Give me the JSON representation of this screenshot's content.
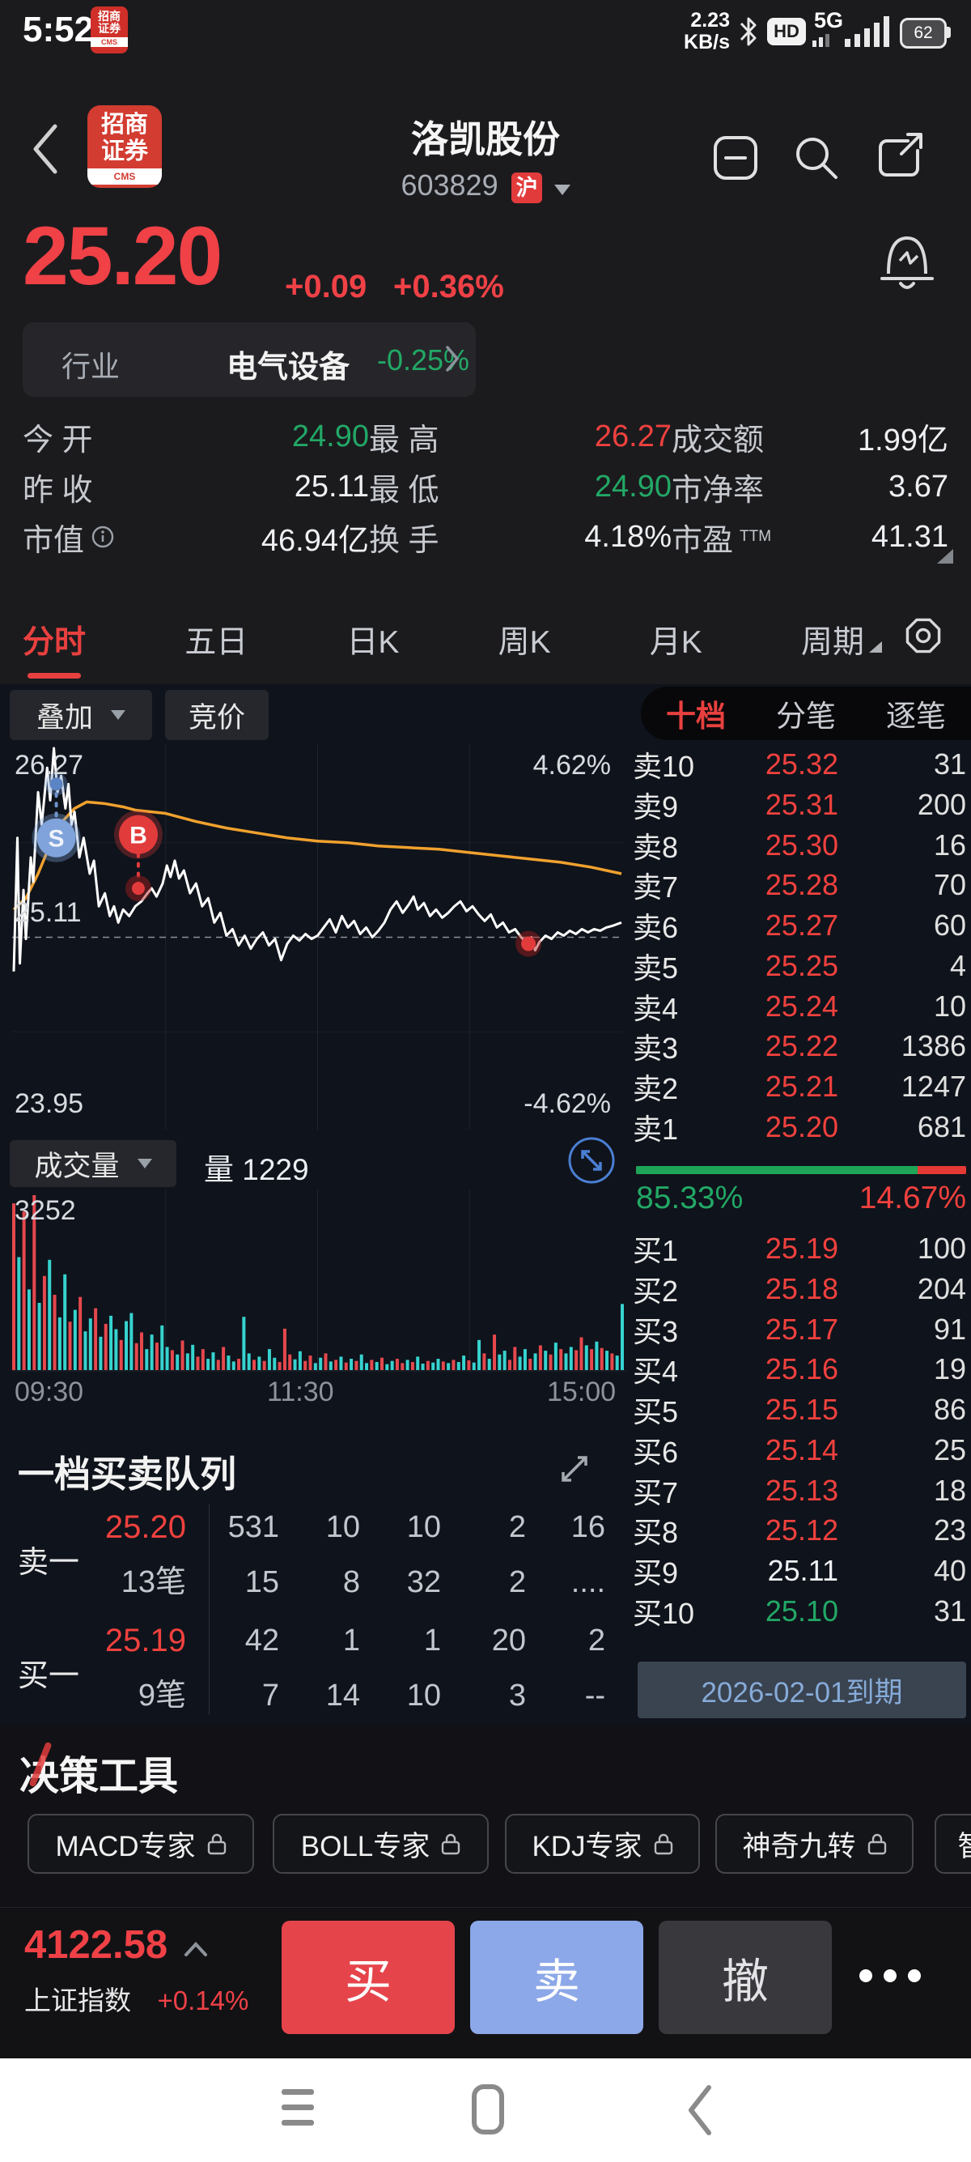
{
  "status_bar": {
    "time": "5:52",
    "net_speed_top": "2.23",
    "net_speed_bottom": "KB/s",
    "hd": "HD",
    "network": "5G",
    "battery": "62"
  },
  "header": {
    "title": "洛凯股份",
    "code": "603829",
    "market_badge": "沪",
    "logo_line1": "招商",
    "logo_line2": "证券",
    "logo_sub": "CMS"
  },
  "quote": {
    "price": "25.20",
    "change": "+0.09",
    "change_pct": "+0.36%"
  },
  "industry": {
    "label": "行业",
    "name": "电气设备",
    "change_pct": "-0.25%"
  },
  "stats": {
    "rows": [
      [
        {
          "label": "今 开",
          "value": "24.90",
          "color": "g"
        },
        {
          "label": "最 高",
          "value": "26.27",
          "color": "r"
        },
        {
          "label": "成交额",
          "value": "1.99亿",
          "color": "w"
        }
      ],
      [
        {
          "label": "昨 收",
          "value": "25.11",
          "color": "w"
        },
        {
          "label": "最 低",
          "value": "24.90",
          "color": "g"
        },
        {
          "label": "市净率",
          "value": "3.67",
          "color": "w"
        }
      ],
      [
        {
          "label": "市值",
          "info": true,
          "value": "46.94亿",
          "color": "w"
        },
        {
          "label": "换 手",
          "value": "4.18%",
          "color": "w"
        },
        {
          "label": "市盈",
          "sup": "TTM",
          "value": "41.31",
          "color": "w"
        }
      ]
    ]
  },
  "tabs": {
    "items": [
      "分时",
      "五日",
      "日K",
      "周K",
      "月K",
      "周期"
    ],
    "active": 0
  },
  "chart_toolbar": {
    "overlay": "叠加",
    "auction": "竞价",
    "depth_tabs": [
      "十档",
      "分笔",
      "逐笔"
    ],
    "depth_active": 0
  },
  "volume_toolbar": {
    "label": "成交量",
    "vol_label": "量 1229"
  },
  "order_book": {
    "sell_rows": [
      {
        "l": "卖10",
        "p": "25.32",
        "v": "31",
        "c": "r"
      },
      {
        "l": "卖9",
        "p": "25.31",
        "v": "200",
        "c": "r"
      },
      {
        "l": "卖8",
        "p": "25.30",
        "v": "16",
        "c": "r"
      },
      {
        "l": "卖7",
        "p": "25.28",
        "v": "70",
        "c": "r"
      },
      {
        "l": "卖6",
        "p": "25.27",
        "v": "60",
        "c": "r"
      },
      {
        "l": "卖5",
        "p": "25.25",
        "v": "4",
        "c": "r"
      },
      {
        "l": "卖4",
        "p": "25.24",
        "v": "10",
        "c": "r"
      },
      {
        "l": "卖3",
        "p": "25.22",
        "v": "1386",
        "c": "r"
      },
      {
        "l": "卖2",
        "p": "25.21",
        "v": "1247",
        "c": "r"
      },
      {
        "l": "卖1",
        "p": "25.20",
        "v": "681",
        "c": "r"
      }
    ],
    "buy_rows": [
      {
        "l": "买1",
        "p": "25.19",
        "v": "100",
        "c": "r"
      },
      {
        "l": "买2",
        "p": "25.18",
        "v": "204",
        "c": "r"
      },
      {
        "l": "买3",
        "p": "25.17",
        "v": "91",
        "c": "r"
      },
      {
        "l": "买4",
        "p": "25.16",
        "v": "19",
        "c": "r"
      },
      {
        "l": "买5",
        "p": "25.15",
        "v": "86",
        "c": "r"
      },
      {
        "l": "买6",
        "p": "25.14",
        "v": "25",
        "c": "r"
      },
      {
        "l": "买7",
        "p": "25.13",
        "v": "18",
        "c": "r"
      },
      {
        "l": "买8",
        "p": "25.12",
        "v": "23",
        "c": "r"
      },
      {
        "l": "买9",
        "p": "25.11",
        "v": "40",
        "c": "w"
      },
      {
        "l": "买10",
        "p": "25.10",
        "v": "31",
        "c": "g"
      }
    ],
    "buy_pct": "85.33%",
    "sell_pct": "14.67%",
    "buy_ratio": 85.33,
    "expiry": "2026-02-01到期"
  },
  "queue": {
    "title": "一档买卖队列",
    "sell_label": "卖一",
    "buy_label": "买一",
    "sell_price": "25.20",
    "sell_count": "13笔",
    "sell_q1": [
      "531",
      "10",
      "10",
      "2",
      "16"
    ],
    "sell_q1_highlight": 0,
    "sell_q2": [
      "15",
      "8",
      "32",
      "2",
      "...."
    ],
    "buy_price": "25.19",
    "buy_count": "9笔",
    "buy_q1": [
      "42",
      "1",
      "1",
      "20",
      "2"
    ],
    "buy_q2": [
      "7",
      "14",
      "10",
      "3",
      "--"
    ]
  },
  "tools": {
    "title": "决策工具",
    "buttons": [
      "MACD专家",
      "BOLL专家",
      "KDJ专家",
      "神奇九转",
      "智"
    ]
  },
  "bottom_bar": {
    "index_value": "4122.58",
    "index_name": "上证指数",
    "index_change": "+0.14%",
    "buy": "买",
    "sell": "卖",
    "cancel": "撤"
  },
  "chart_data": {
    "type": "line",
    "title": "分时",
    "labels": {
      "high": "26.27",
      "mid": "25.11",
      "low": "23.95",
      "pct_high": "4.62%",
      "pct_low": "-4.62%",
      "vol_max": "3252",
      "x": [
        "09:30",
        "11:30",
        "15:00"
      ]
    },
    "y_range": [
      23.95,
      26.27
    ],
    "prev_close": 25.11,
    "price": [
      [
        0,
        24.9
      ],
      [
        0.006,
        25.72
      ],
      [
        0.01,
        24.95
      ],
      [
        0.016,
        25.4
      ],
      [
        0.02,
        25.1
      ],
      [
        0.028,
        25.6
      ],
      [
        0.032,
        25.45
      ],
      [
        0.04,
        26.0
      ],
      [
        0.046,
        25.8
      ],
      [
        0.055,
        26.15
      ],
      [
        0.06,
        25.95
      ],
      [
        0.066,
        26.27
      ],
      [
        0.072,
        26.0
      ],
      [
        0.078,
        26.1
      ],
      [
        0.085,
        25.9
      ],
      [
        0.09,
        26.05
      ],
      [
        0.095,
        25.8
      ],
      [
        0.1,
        25.88
      ],
      [
        0.108,
        25.6
      ],
      [
        0.115,
        25.72
      ],
      [
        0.125,
        25.5
      ],
      [
        0.132,
        25.58
      ],
      [
        0.14,
        25.3
      ],
      [
        0.15,
        25.38
      ],
      [
        0.158,
        25.24
      ],
      [
        0.165,
        25.3
      ],
      [
        0.172,
        25.2
      ],
      [
        0.18,
        25.28
      ],
      [
        0.19,
        25.24
      ],
      [
        0.2,
        25.3
      ],
      [
        0.21,
        25.33
      ],
      [
        0.22,
        25.38
      ],
      [
        0.227,
        25.41
      ],
      [
        0.235,
        25.36
      ],
      [
        0.245,
        25.44
      ],
      [
        0.252,
        25.55
      ],
      [
        0.258,
        25.48
      ],
      [
        0.265,
        25.58
      ],
      [
        0.272,
        25.47
      ],
      [
        0.28,
        25.52
      ],
      [
        0.29,
        25.38
      ],
      [
        0.3,
        25.44
      ],
      [
        0.31,
        25.3
      ],
      [
        0.32,
        25.35
      ],
      [
        0.33,
        25.2
      ],
      [
        0.34,
        25.26
      ],
      [
        0.35,
        25.12
      ],
      [
        0.36,
        25.16
      ],
      [
        0.37,
        25.06
      ],
      [
        0.38,
        25.12
      ],
      [
        0.39,
        25.04
      ],
      [
        0.4,
        25.1
      ],
      [
        0.41,
        25.14
      ],
      [
        0.42,
        25.06
      ],
      [
        0.43,
        25.1
      ],
      [
        0.44,
        24.97
      ],
      [
        0.45,
        25.07
      ],
      [
        0.46,
        25.12
      ],
      [
        0.47,
        25.09
      ],
      [
        0.48,
        25.13
      ],
      [
        0.49,
        25.1
      ],
      [
        0.5,
        25.12
      ],
      [
        0.51,
        25.17
      ],
      [
        0.52,
        25.22
      ],
      [
        0.53,
        25.14
      ],
      [
        0.54,
        25.24
      ],
      [
        0.55,
        25.17
      ],
      [
        0.56,
        25.21
      ],
      [
        0.57,
        25.13
      ],
      [
        0.58,
        25.17
      ],
      [
        0.59,
        25.11
      ],
      [
        0.6,
        25.15
      ],
      [
        0.61,
        25.2
      ],
      [
        0.62,
        25.28
      ],
      [
        0.63,
        25.33
      ],
      [
        0.64,
        25.26
      ],
      [
        0.65,
        25.31
      ],
      [
        0.658,
        25.36
      ],
      [
        0.665,
        25.28
      ],
      [
        0.675,
        25.32
      ],
      [
        0.685,
        25.24
      ],
      [
        0.695,
        25.28
      ],
      [
        0.705,
        25.23
      ],
      [
        0.715,
        25.26
      ],
      [
        0.725,
        25.3
      ],
      [
        0.735,
        25.33
      ],
      [
        0.745,
        25.27
      ],
      [
        0.755,
        25.3
      ],
      [
        0.765,
        25.25
      ],
      [
        0.775,
        25.21
      ],
      [
        0.785,
        25.25
      ],
      [
        0.795,
        25.17
      ],
      [
        0.805,
        25.2
      ],
      [
        0.815,
        25.14
      ],
      [
        0.825,
        25.16
      ],
      [
        0.835,
        25.11
      ],
      [
        0.845,
        25.07
      ],
      [
        0.852,
        25.11
      ],
      [
        0.858,
        25.03
      ],
      [
        0.865,
        25.08
      ],
      [
        0.875,
        25.12
      ],
      [
        0.885,
        25.1
      ],
      [
        0.895,
        25.14
      ],
      [
        0.905,
        25.12
      ],
      [
        0.915,
        25.15
      ],
      [
        0.925,
        25.13
      ],
      [
        0.935,
        25.16
      ],
      [
        0.945,
        25.14
      ],
      [
        0.955,
        25.16
      ],
      [
        0.965,
        25.15
      ],
      [
        0.975,
        25.17
      ],
      [
        0.985,
        25.18
      ],
      [
        1,
        25.2
      ]
    ],
    "avg": [
      [
        0,
        25.28
      ],
      [
        0.02,
        25.35
      ],
      [
        0.04,
        25.5
      ],
      [
        0.06,
        25.68
      ],
      [
        0.08,
        25.82
      ],
      [
        0.1,
        25.9
      ],
      [
        0.12,
        25.94
      ],
      [
        0.15,
        25.93
      ],
      [
        0.18,
        25.91
      ],
      [
        0.2,
        25.89
      ],
      [
        0.25,
        25.87
      ],
      [
        0.3,
        25.82
      ],
      [
        0.35,
        25.78
      ],
      [
        0.4,
        25.75
      ],
      [
        0.45,
        25.72
      ],
      [
        0.5,
        25.7
      ],
      [
        0.55,
        25.69
      ],
      [
        0.6,
        25.67
      ],
      [
        0.65,
        25.66
      ],
      [
        0.7,
        25.65
      ],
      [
        0.75,
        25.63
      ],
      [
        0.8,
        25.61
      ],
      [
        0.85,
        25.59
      ],
      [
        0.9,
        25.57
      ],
      [
        0.95,
        25.54
      ],
      [
        1,
        25.5
      ]
    ],
    "markers": {
      "s_dot": [
        0.07,
        26.05
      ],
      "s_badge": [
        0.07,
        25.72
      ],
      "b_badge": [
        0.205,
        25.74
      ],
      "b_dot": [
        0.205,
        25.41
      ],
      "sell_dot": [
        0.847,
        25.07
      ]
    },
    "volume_max": 3252,
    "volume": [
      [
        3100,
        "r"
      ],
      [
        2100,
        "c"
      ],
      [
        2950,
        "r"
      ],
      [
        1500,
        "c"
      ],
      [
        3252,
        "r"
      ],
      [
        1250,
        "c"
      ],
      [
        1750,
        "r"
      ],
      [
        2050,
        "c"
      ],
      [
        1400,
        "r"
      ],
      [
        980,
        "c"
      ],
      [
        1780,
        "c"
      ],
      [
        900,
        "r"
      ],
      [
        1120,
        "c"
      ],
      [
        1360,
        "r"
      ],
      [
        720,
        "c"
      ],
      [
        960,
        "c"
      ],
      [
        1150,
        "r"
      ],
      [
        620,
        "c"
      ],
      [
        860,
        "r"
      ],
      [
        1010,
        "c"
      ],
      [
        760,
        "c"
      ],
      [
        560,
        "r"
      ],
      [
        910,
        "c"
      ],
      [
        1060,
        "c"
      ],
      [
        500,
        "r"
      ],
      [
        700,
        "r"
      ],
      [
        390,
        "c"
      ],
      [
        660,
        "c"
      ],
      [
        510,
        "r"
      ],
      [
        830,
        "c"
      ],
      [
        430,
        "c"
      ],
      [
        370,
        "r"
      ],
      [
        290,
        "c"
      ],
      [
        550,
        "r"
      ],
      [
        310,
        "c"
      ],
      [
        470,
        "c"
      ],
      [
        250,
        "r"
      ],
      [
        390,
        "r"
      ],
      [
        210,
        "c"
      ],
      [
        330,
        "c"
      ],
      [
        190,
        "r"
      ],
      [
        430,
        "r"
      ],
      [
        270,
        "c"
      ],
      [
        160,
        "c"
      ],
      [
        210,
        "r"
      ],
      [
        990,
        "c"
      ],
      [
        310,
        "c"
      ],
      [
        190,
        "r"
      ],
      [
        250,
        "c"
      ],
      [
        170,
        "r"
      ],
      [
        390,
        "c"
      ],
      [
        230,
        "c"
      ],
      [
        150,
        "r"
      ],
      [
        770,
        "r"
      ],
      [
        290,
        "r"
      ],
      [
        200,
        "c"
      ],
      [
        350,
        "c"
      ],
      [
        170,
        "r"
      ],
      [
        270,
        "r"
      ],
      [
        130,
        "c"
      ],
      [
        230,
        "c"
      ],
      [
        310,
        "r"
      ],
      [
        160,
        "c"
      ],
      [
        190,
        "r"
      ],
      [
        250,
        "c"
      ],
      [
        140,
        "r"
      ],
      [
        210,
        "c"
      ],
      [
        170,
        "r"
      ],
      [
        290,
        "c"
      ],
      [
        130,
        "c"
      ],
      [
        190,
        "r"
      ],
      [
        150,
        "c"
      ],
      [
        230,
        "r"
      ],
      [
        110,
        "c"
      ],
      [
        170,
        "c"
      ],
      [
        210,
        "r"
      ],
      [
        130,
        "r"
      ],
      [
        190,
        "c"
      ],
      [
        150,
        "r"
      ],
      [
        250,
        "c"
      ],
      [
        120,
        "c"
      ],
      [
        170,
        "r"
      ],
      [
        140,
        "c"
      ],
      [
        210,
        "c"
      ],
      [
        160,
        "r"
      ],
      [
        130,
        "c"
      ],
      [
        190,
        "r"
      ],
      [
        150,
        "c"
      ],
      [
        270,
        "c"
      ],
      [
        180,
        "r"
      ],
      [
        140,
        "c"
      ],
      [
        560,
        "c"
      ],
      [
        310,
        "r"
      ],
      [
        210,
        "c"
      ],
      [
        660,
        "r"
      ],
      [
        290,
        "c"
      ],
      [
        360,
        "c"
      ],
      [
        190,
        "r"
      ],
      [
        430,
        "r"
      ],
      [
        250,
        "c"
      ],
      [
        390,
        "c"
      ],
      [
        210,
        "r"
      ],
      [
        310,
        "c"
      ],
      [
        460,
        "r"
      ],
      [
        360,
        "c"
      ],
      [
        290,
        "r"
      ],
      [
        510,
        "c"
      ],
      [
        390,
        "r"
      ],
      [
        310,
        "c"
      ],
      [
        430,
        "c"
      ],
      [
        370,
        "r"
      ],
      [
        610,
        "r"
      ],
      [
        460,
        "c"
      ],
      [
        390,
        "r"
      ],
      [
        530,
        "c"
      ],
      [
        410,
        "r"
      ],
      [
        360,
        "c"
      ],
      [
        310,
        "r"
      ],
      [
        270,
        "c"
      ],
      [
        1229,
        "c"
      ]
    ]
  }
}
